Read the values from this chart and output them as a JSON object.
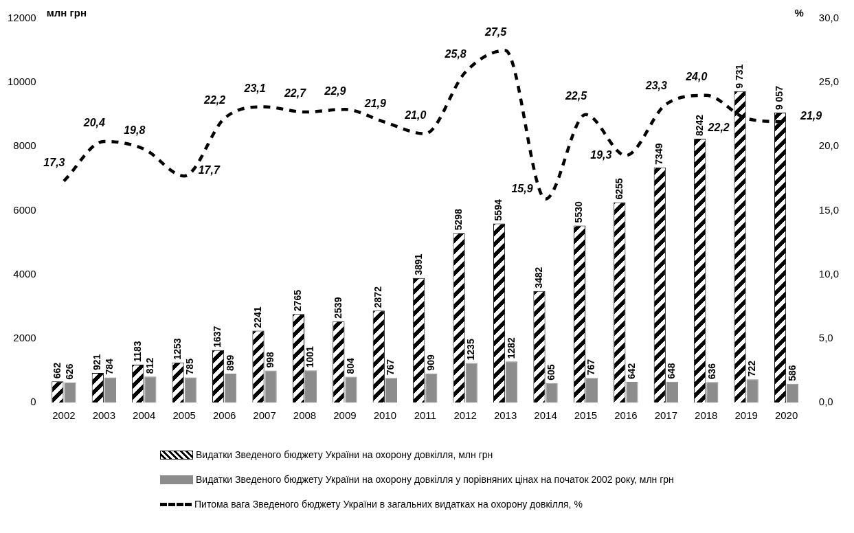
{
  "chart_data": {
    "type": "bar",
    "ylabel": "млн грн",
    "y2label": "%",
    "categories": [
      "2002",
      "2003",
      "2004",
      "2005",
      "2006",
      "2007",
      "2008",
      "2009",
      "2010",
      "2011",
      "2012",
      "2013",
      "2014",
      "2015",
      "2016",
      "2017",
      "2018",
      "2019",
      "2020"
    ],
    "series": [
      {
        "name": "Видатки Зведеного бюджету України на охорону довкілля, млн грн",
        "color": "#000000",
        "values": [
          662,
          921,
          1183,
          1253,
          1637,
          2241,
          2765,
          2539,
          2872,
          3891,
          5298,
          5594,
          3482,
          5530,
          6255,
          7349,
          8242,
          9731,
          9057
        ],
        "value_labels": [
          "662",
          "921",
          "1183",
          "1253",
          "1637",
          "2241",
          "2765",
          "2539",
          "2872",
          "3891",
          "5298",
          "5594",
          "3482",
          "5530",
          "6255",
          "7349",
          "8242",
          "9 731",
          "9 057"
        ]
      },
      {
        "name": "Видатки Зведеного бюджету України на охорону довкілля у порівняних цінах на початок 2002 року, млн грн",
        "color": "#8c8c8c",
        "values": [
          626,
          784,
          812,
          785,
          899,
          998,
          1001,
          804,
          767,
          909,
          1235,
          1282,
          605,
          767,
          642,
          648,
          636,
          722,
          586
        ],
        "value_labels": [
          "626",
          "784",
          "812",
          "785",
          "899",
          "998",
          "1001",
          "804",
          "767",
          "909",
          "1235",
          "1282",
          "605",
          "767",
          "642",
          "648",
          "636",
          "722",
          "586"
        ]
      },
      {
        "name": "Питома вага Зведеного бюджету України в загальних видатках на охорону довкілля, %",
        "type": "line",
        "axis": "y2",
        "color": "#000000",
        "line_style": "dashed",
        "marker": "none",
        "values": [
          17.3,
          20.4,
          19.8,
          17.7,
          22.2,
          23.1,
          22.7,
          22.9,
          21.9,
          21.0,
          25.8,
          27.5,
          15.9,
          22.5,
          19.3,
          23.3,
          24.0,
          22.2,
          21.9
        ],
        "value_labels": [
          "17,3",
          "20,4",
          "19,8",
          "17,7",
          "22,2",
          "23,1",
          "22,7",
          "22,9",
          "21,9",
          "21,0",
          "25,8",
          "27,5",
          "15,9",
          "22,5",
          "19,3",
          "23,3",
          "24,0",
          "22,2",
          "21,9"
        ]
      }
    ],
    "ylim": [
      0,
      12000
    ],
    "yticks": [
      0,
      2000,
      4000,
      6000,
      8000,
      10000,
      12000
    ],
    "y2lim": [
      0,
      30
    ],
    "y2ticks": [
      {
        "value": 0,
        "label": "0,0"
      },
      {
        "value": 5,
        "label": "5,0"
      },
      {
        "value": 10,
        "label": "10,0"
      },
      {
        "value": 15,
        "label": "15,0"
      },
      {
        "value": 20,
        "label": "20,0"
      },
      {
        "value": 25,
        "label": "25,0"
      },
      {
        "value": 30,
        "label": "30,0"
      }
    ],
    "grid": false,
    "legend": "bottom"
  }
}
